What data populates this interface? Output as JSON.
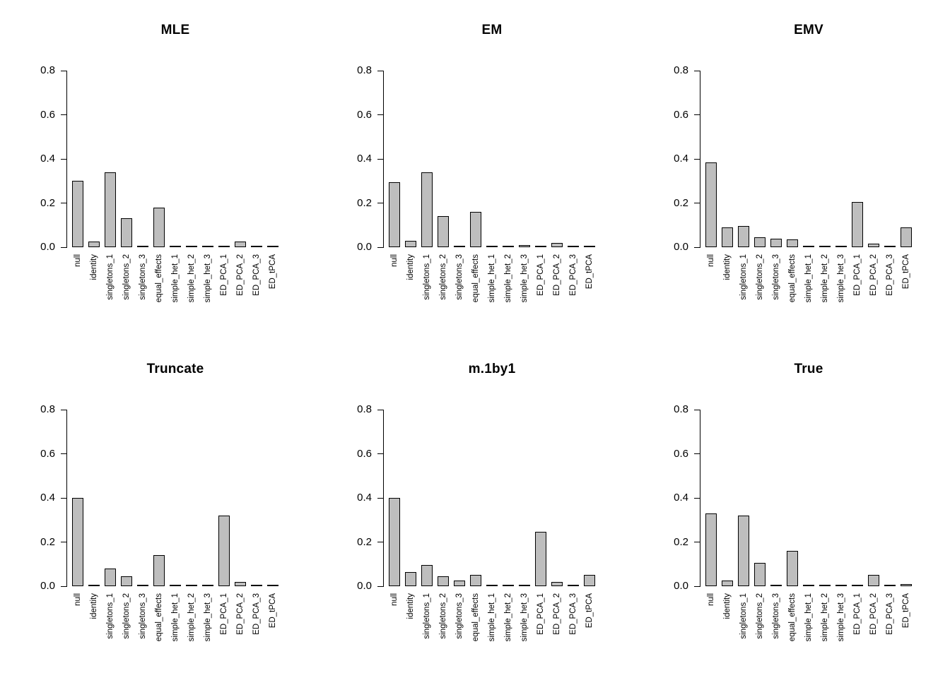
{
  "chart_data": {
    "type": "bar",
    "layout": {
      "rows": 2,
      "cols": 3
    },
    "grid": false,
    "legend": "none",
    "ylim": [
      0,
      0.8
    ],
    "y_ticks": [
      "0.0",
      "0.2",
      "0.4",
      "0.6",
      "0.8"
    ],
    "bar_color": "#bebebe",
    "bar_border_color": "#000000",
    "categories": [
      "null",
      "identity",
      "singletons_1",
      "singletons_2",
      "singletons_3",
      "equal_effects",
      "simple_het_1",
      "simple_het_2",
      "simple_het_3",
      "ED_PCA_1",
      "ED_PCA_2",
      "ED_PCA_3",
      "ED_tPCA"
    ],
    "panels": [
      {
        "title": "MLE",
        "values": [
          0.3,
          0.025,
          0.34,
          0.13,
          0,
          0.18,
          0,
          0,
          0,
          0,
          0.025,
          0,
          0
        ]
      },
      {
        "title": "EM",
        "values": [
          0.295,
          0.03,
          0.34,
          0.14,
          0,
          0.16,
          0,
          0,
          0.01,
          0,
          0.02,
          0,
          0
        ]
      },
      {
        "title": "EMV",
        "values": [
          0.385,
          0.09,
          0.095,
          0.045,
          0.04,
          0.035,
          0,
          0,
          0,
          0.205,
          0.015,
          0,
          0.09
        ]
      },
      {
        "title": "Truncate",
        "values": [
          0.4,
          0,
          0.08,
          0.045,
          0,
          0.14,
          0,
          0,
          0,
          0.32,
          0.02,
          0,
          0
        ]
      },
      {
        "title": "m.1by1",
        "values": [
          0.4,
          0.065,
          0.095,
          0.045,
          0.025,
          0.05,
          0,
          0,
          0,
          0.245,
          0.02,
          0,
          0.05
        ]
      },
      {
        "title": "True",
        "values": [
          0.33,
          0.025,
          0.32,
          0.105,
          0,
          0.16,
          0,
          0,
          0,
          0,
          0.05,
          0,
          0.01
        ]
      }
    ]
  }
}
